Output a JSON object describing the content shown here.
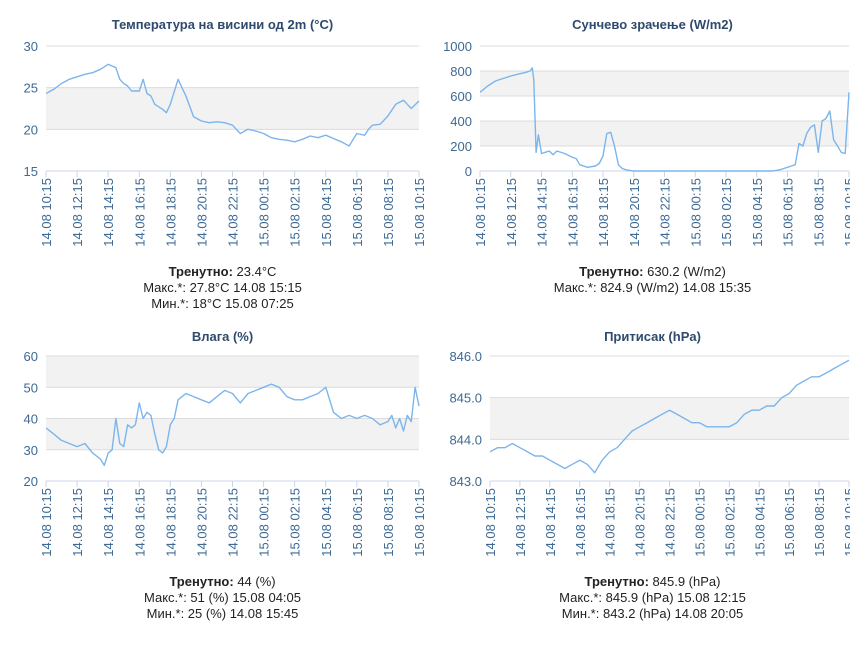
{
  "chart_data": [
    {
      "type": "line",
      "title": "Температура на висини од 2m (°C)",
      "color": "#7cb5ec",
      "ylim": [
        15,
        30
      ],
      "yticks": [
        "15",
        "20",
        "25",
        "30"
      ],
      "bands": [
        [
          20,
          25
        ]
      ],
      "xticks": [
        "14.08 10:15",
        "14.08 12:15",
        "14.08 14:15",
        "14.08 16:15",
        "14.08 18:15",
        "14.08 20:15",
        "14.08 22:15",
        "15.08 00:15",
        "15.08 02:15",
        "15.08 04:15",
        "15.08 06:15",
        "15.08 08:15",
        "15.08 10:15"
      ],
      "x_hours": [
        0,
        0.5,
        1,
        1.5,
        2,
        2.5,
        3,
        3.5,
        4,
        4.25,
        4.5,
        4.75,
        5,
        5.25,
        5.5,
        6,
        6.25,
        6.5,
        6.75,
        7,
        7.25,
        7.5,
        7.75,
        8,
        8.5,
        8.75,
        9,
        9.5,
        10,
        10.5,
        11,
        11.5,
        12,
        12.5,
        13,
        13.5,
        14,
        14.5,
        15,
        15.5,
        16,
        16.5,
        17,
        17.5,
        18,
        18.5,
        19,
        19.5,
        20,
        20.5,
        20.75,
        21,
        21.5,
        22,
        22.5,
        23,
        23.5,
        24
      ],
      "values": [
        24.3,
        24.8,
        25.5,
        26,
        26.3,
        26.6,
        26.8,
        27.2,
        27.8,
        27.6,
        27.4,
        26,
        25.5,
        25.2,
        24.6,
        24.6,
        26,
        24.3,
        24,
        23,
        22.7,
        22.4,
        22,
        23,
        26,
        25,
        24,
        21.5,
        21,
        20.8,
        20.9,
        20.8,
        20.5,
        19.5,
        20,
        19.8,
        19.5,
        19,
        18.8,
        18.7,
        18.5,
        18.8,
        19.2,
        19,
        19.3,
        18.9,
        18.5,
        18,
        19.5,
        19.3,
        20,
        20.5,
        20.6,
        21.6,
        23,
        23.5,
        22.5,
        23.4
      ]
    },
    {
      "type": "line",
      "title": "Сунчево зрачење (W/m2)",
      "color": "#7cb5ec",
      "ylim": [
        0,
        1000
      ],
      "yticks": [
        "0",
        "200",
        "400",
        "600",
        "800",
        "1000"
      ],
      "bands": [
        [
          200,
          400
        ],
        [
          600,
          800
        ]
      ],
      "xticks": [
        "14.08 10:15",
        "14.08 12:15",
        "14.08 14:15",
        "14.08 16:15",
        "14.08 18:15",
        "14.08 20:15",
        "14.08 22:15",
        "15.08 00:15",
        "15.08 02:15",
        "15.08 04:15",
        "15.08 06:15",
        "15.08 08:15",
        "15.08 10:15"
      ],
      "x_hours": [
        0,
        0.5,
        1,
        1.5,
        2,
        2.5,
        3,
        3.25,
        3.4,
        3.5,
        3.65,
        3.8,
        4,
        4.25,
        4.5,
        4.75,
        5,
        5.5,
        6,
        6.25,
        6.5,
        7,
        7.5,
        7.75,
        8,
        8.25,
        8.5,
        8.75,
        9,
        9.25,
        9.5,
        9.75,
        10,
        10.5,
        11,
        11.5,
        12,
        12.5,
        13,
        13.5,
        14,
        14.5,
        15,
        15.5,
        16,
        16.5,
        17,
        17.5,
        18,
        18.5,
        19,
        19.25,
        19.5,
        19.75,
        20,
        20.25,
        20.5,
        20.75,
        21,
        21.25,
        21.5,
        21.75,
        22,
        22.25,
        22.5,
        22.75,
        23,
        23.25,
        23.5,
        23.75,
        24
      ],
      "values": [
        630,
        680,
        720,
        740,
        760,
        775,
        790,
        800,
        825,
        730,
        150,
        290,
        140,
        150,
        160,
        130,
        160,
        140,
        110,
        100,
        50,
        30,
        40,
        60,
        120,
        300,
        310,
        200,
        50,
        20,
        10,
        5,
        0,
        0,
        0,
        0,
        0,
        0,
        0,
        0,
        0,
        0,
        0,
        0,
        0,
        0,
        0,
        0,
        0,
        0,
        0,
        5,
        10,
        20,
        30,
        40,
        50,
        220,
        200,
        300,
        350,
        370,
        150,
        400,
        420,
        480,
        250,
        200,
        150,
        140,
        630
      ]
    },
    {
      "type": "line",
      "title": "Влага (%)",
      "color": "#7cb5ec",
      "ylim": [
        20,
        60
      ],
      "yticks": [
        "20",
        "30",
        "40",
        "50",
        "60"
      ],
      "bands": [
        [
          30,
          40
        ],
        [
          50,
          60
        ]
      ],
      "xticks": [
        "14.08 10:15",
        "14.08 12:15",
        "14.08 14:15",
        "14.08 16:15",
        "14.08 18:15",
        "14.08 20:15",
        "14.08 22:15",
        "15.08 00:15",
        "15.08 02:15",
        "15.08 04:15",
        "15.08 06:15",
        "15.08 08:15",
        "15.08 10:15"
      ],
      "x_hours": [
        0,
        0.5,
        1,
        1.5,
        2,
        2.5,
        3,
        3.25,
        3.5,
        3.75,
        4,
        4.25,
        4.5,
        4.75,
        5,
        5.25,
        5.5,
        5.75,
        6,
        6.25,
        6.5,
        6.75,
        7,
        7.25,
        7.5,
        7.75,
        8,
        8.25,
        8.5,
        9,
        9.5,
        10,
        10.5,
        11,
        11.5,
        12,
        12.5,
        13,
        13.5,
        14,
        14.5,
        15,
        15.5,
        16,
        16.5,
        17,
        17.5,
        18,
        18.5,
        19,
        19.5,
        20,
        20.5,
        21,
        21.5,
        22,
        22.25,
        22.5,
        22.75,
        23,
        23.25,
        23.5,
        23.75,
        24
      ],
      "values": [
        37,
        35,
        33,
        32,
        31,
        32,
        29,
        28,
        27,
        25,
        29,
        30,
        40,
        32,
        31,
        38,
        37,
        38,
        45,
        40,
        42,
        41,
        35,
        30,
        29,
        31,
        38,
        40,
        46,
        48,
        47,
        46,
        45,
        47,
        49,
        48,
        45,
        48,
        49,
        50,
        51,
        50,
        47,
        46,
        46,
        47,
        48,
        50,
        42,
        40,
        41,
        40,
        41,
        40,
        38,
        39,
        41,
        37,
        40,
        36,
        41,
        39,
        50,
        44
      ]
    },
    {
      "type": "line",
      "title": "Притисак (hPa)",
      "color": "#7cb5ec",
      "ylim": [
        843.0,
        846.0
      ],
      "yticks": [
        "843.0",
        "844.0",
        "845.0",
        "846.0"
      ],
      "bands": [
        [
          844.0,
          845.0
        ]
      ],
      "xticks": [
        "14.08 10:15",
        "14.08 12:15",
        "14.08 14:15",
        "14.08 16:15",
        "14.08 18:15",
        "14.08 20:15",
        "14.08 22:15",
        "15.08 00:15",
        "15.08 02:15",
        "15.08 04:15",
        "15.08 06:15",
        "15.08 08:15",
        "15.08 10:15"
      ],
      "x_hours": [
        0,
        0.5,
        1,
        1.5,
        2,
        2.5,
        3,
        3.5,
        4,
        4.5,
        5,
        5.5,
        6,
        6.5,
        7,
        7.5,
        8,
        8.5,
        9,
        9.5,
        10,
        10.5,
        11,
        11.5,
        12,
        12.5,
        13,
        13.5,
        14,
        14.5,
        15,
        15.5,
        16,
        16.5,
        17,
        17.5,
        18,
        18.5,
        19,
        19.5,
        20,
        20.5,
        21,
        21.5,
        22,
        22.5,
        23,
        23.5,
        24
      ],
      "values": [
        843.7,
        843.8,
        843.8,
        843.9,
        843.8,
        843.7,
        843.6,
        843.6,
        843.5,
        843.4,
        843.3,
        843.4,
        843.5,
        843.4,
        843.2,
        843.5,
        843.7,
        843.8,
        844.0,
        844.2,
        844.3,
        844.4,
        844.5,
        844.6,
        844.7,
        844.6,
        844.5,
        844.4,
        844.4,
        844.3,
        844.3,
        844.3,
        844.3,
        844.4,
        844.6,
        844.7,
        844.7,
        844.8,
        844.8,
        845.0,
        845.1,
        845.3,
        845.4,
        845.5,
        845.5,
        845.6,
        845.7,
        845.8,
        845.9
      ]
    }
  ],
  "stats": [
    {
      "current_label": "Тренутно:",
      "current_value": " 23.4°C",
      "max_text": "Макс.*: 27.8°C 14.08 15:15",
      "min_text": "Мин.*: 18°C 15.08 07:25"
    },
    {
      "current_label": "Тренутно:",
      "current_value": " 630.2 (W/m2)",
      "max_text": "Макс.*: 824.9 (W/m2) 14.08 15:35",
      "min_text": ""
    },
    {
      "current_label": "Тренутно:",
      "current_value": " 44 (%)",
      "max_text": "Макс.*: 51 (%) 15.08 04:05",
      "min_text": "Мин.*: 25 (%) 14.08 15:45"
    },
    {
      "current_label": "Тренутно:",
      "current_value": " 845.9 (hPa)",
      "max_text": "Макс.*: 845.9 (hPa) 15.08 12:15",
      "min_text": "Мин.*: 843.2 (hPa) 14.08 20:05"
    }
  ]
}
